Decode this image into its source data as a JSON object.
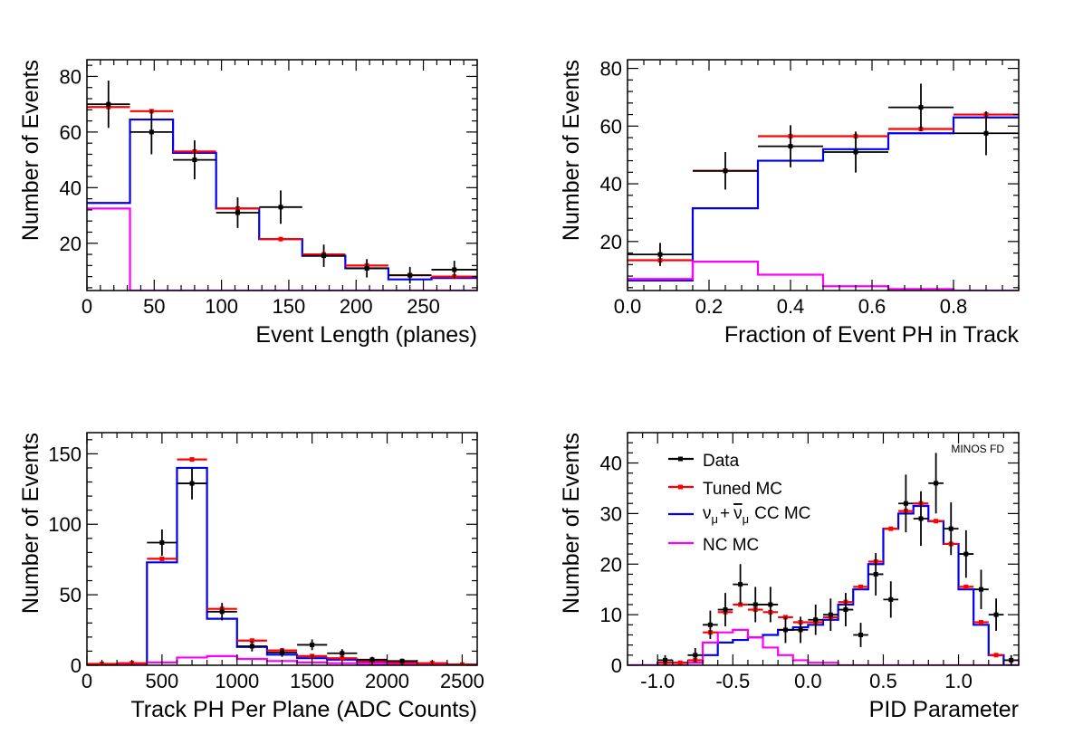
{
  "colors": {
    "data": "#000000",
    "tuned": "#ff0000",
    "cc": "#0000ee",
    "nc": "#ff00ff"
  },
  "chart_data": [
    {
      "type": "histogram",
      "xlabel": "Event Length (planes)",
      "ylabel": "Number of Events",
      "xlim": [
        0,
        290
      ],
      "ylim": [
        3,
        86
      ],
      "xticks": [
        0,
        50,
        100,
        150,
        200,
        250
      ],
      "yticks": [
        20,
        40,
        60,
        80
      ],
      "bin_edges": [
        0,
        32,
        64,
        96,
        128,
        160,
        192,
        224,
        256,
        290
      ],
      "series": [
        {
          "name": "Tuned MC",
          "values": [
            69,
            67.5,
            53,
            32.5,
            21.5,
            16,
            12,
            8.5,
            8
          ]
        },
        {
          "name": "ν_μ + ν̄_μ CC MC",
          "values": [
            34.5,
            64.5,
            52.5,
            32.5,
            21.5,
            15.5,
            11,
            7,
            7.5
          ]
        },
        {
          "name": "NC MC",
          "values": [
            32.5,
            0,
            0,
            0,
            0,
            0,
            0,
            0,
            0
          ]
        },
        {
          "name": "Data",
          "values": [
            70,
            60,
            50,
            31,
            33,
            15.5,
            11,
            8.5,
            10.5
          ],
          "errors": [
            8.5,
            8,
            7,
            5.5,
            6,
            4,
            3.3,
            3,
            3.2
          ]
        }
      ]
    },
    {
      "type": "histogram",
      "xlabel": "Fraction of Event PH in Track",
      "ylabel": "Number of Events",
      "xlim": [
        0,
        0.96
      ],
      "ylim": [
        3,
        83
      ],
      "xticks": [
        0.0,
        0.2,
        0.4,
        0.6,
        0.8
      ],
      "xtick_labels": [
        "0.0",
        "0.2",
        "0.4",
        "0.6",
        "0.8"
      ],
      "yticks": [
        20,
        40,
        60,
        80
      ],
      "bin_edges": [
        0,
        0.16,
        0.32,
        0.48,
        0.64,
        0.8,
        0.96
      ],
      "series": [
        {
          "name": "Tuned MC",
          "values": [
            13.5,
            44.5,
            56.5,
            56.5,
            59,
            64
          ]
        },
        {
          "name": "ν_μ + ν̄_μ CC MC",
          "values": [
            6.5,
            31.5,
            48,
            52,
            57.5,
            63
          ]
        },
        {
          "name": "NC MC",
          "values": [
            7,
            13,
            8.5,
            4.5,
            3.5,
            3
          ]
        },
        {
          "name": "Data",
          "values": [
            15.5,
            44.5,
            53,
            51,
            66.5,
            57.5
          ],
          "errors": [
            4,
            6.5,
            7.3,
            7.1,
            8.2,
            7.6
          ]
        }
      ]
    },
    {
      "type": "histogram",
      "xlabel": "Track PH Per Plane (ADC Counts)",
      "ylabel": "Number of Events",
      "xlim": [
        0,
        2600
      ],
      "ylim": [
        0,
        165
      ],
      "xticks": [
        0,
        500,
        1000,
        1500,
        2000,
        2500
      ],
      "yticks": [
        0,
        50,
        100,
        150
      ],
      "bin_edges": [
        0,
        200,
        400,
        600,
        800,
        1000,
        1200,
        1400,
        1600,
        1800,
        2000,
        2200,
        2400,
        2600
      ],
      "series": [
        {
          "name": "Tuned MC",
          "values": [
            1,
            1.5,
            75.5,
            146,
            40,
            17.5,
            10.5,
            6.5,
            5,
            3,
            2,
            1.5,
            0.5
          ]
        },
        {
          "name": "ν_μ + ν̄_μ CC MC",
          "values": [
            0.5,
            1,
            73,
            140,
            33,
            13,
            7.5,
            5,
            4,
            2.5,
            1.5,
            1,
            0.5
          ]
        },
        {
          "name": "NC MC",
          "values": [
            0,
            0.5,
            2,
            5.5,
            6.5,
            4.5,
            3,
            2,
            1.5,
            1,
            0.5,
            0.5,
            0
          ]
        },
        {
          "name": "Data",
          "values": [
            0,
            0,
            87,
            129,
            38,
            13.5,
            9,
            14.5,
            8.5,
            4,
            3,
            0,
            0
          ],
          "errors": [
            0,
            0,
            9.3,
            11.4,
            6.2,
            3.7,
            3,
            3.8,
            2.9,
            2,
            1.7,
            0,
            0
          ],
          "markers": [
            false,
            false,
            true,
            true,
            true,
            true,
            true,
            true,
            true,
            true,
            true,
            false,
            false
          ]
        }
      ]
    },
    {
      "type": "histogram",
      "xlabel": "PID Parameter",
      "ylabel": "Number of Events",
      "xlim": [
        -1.2,
        1.4
      ],
      "ylim": [
        0,
        46
      ],
      "xticks": [
        -1.0,
        -0.5,
        0.0,
        0.5,
        1.0
      ],
      "xtick_labels": [
        "-1.0",
        "-0.5",
        "0.0",
        "0.5",
        "1.0"
      ],
      "yticks": [
        0,
        10,
        20,
        30,
        40
      ],
      "bin_edges": [
        -1.2,
        -1.1,
        -1.0,
        -0.9,
        -0.8,
        -0.7,
        -0.6,
        -0.5,
        -0.4,
        -0.3,
        -0.2,
        -0.1,
        0.0,
        0.1,
        0.2,
        0.3,
        0.4,
        0.5,
        0.6,
        0.7,
        0.8,
        0.9,
        1.0,
        1.1,
        1.2,
        1.3,
        1.4
      ],
      "annotation": "MINOS FD",
      "legend_position": "top-left",
      "legend": [
        "Data",
        "Tuned MC",
        "ν_μ + ν̄_μ CC MC",
        "NC MC"
      ],
      "series": [
        {
          "name": "Tuned MC",
          "values": [
            0,
            0,
            0.5,
            0.5,
            1,
            6.5,
            10.5,
            12,
            11,
            10.5,
            9.5,
            8.5,
            8.5,
            9.5,
            12.5,
            15.5,
            20.5,
            27,
            30.5,
            32,
            28.5,
            24,
            15.5,
            8.5,
            2,
            0
          ]
        },
        {
          "name": "ν_μ + ν̄_μ CC MC",
          "values": [
            0,
            0,
            0.5,
            0.5,
            0.5,
            2,
            4.5,
            5,
            5.5,
            6,
            7,
            7.5,
            8,
            9,
            12,
            15,
            20,
            27,
            30,
            31.5,
            28.5,
            24,
            15,
            8,
            2,
            0
          ]
        },
        {
          "name": "NC MC",
          "values": [
            0,
            0,
            0,
            0,
            0.5,
            4.5,
            6.5,
            7,
            5.5,
            3.5,
            2,
            1,
            0.5,
            0.5,
            0,
            0,
            0,
            0,
            0,
            0,
            0,
            0,
            0,
            0,
            0,
            0
          ]
        },
        {
          "name": "Data",
          "values": [
            0,
            0,
            1,
            0,
            2,
            8,
            11,
            16,
            12,
            12,
            7,
            7,
            9,
            10,
            11,
            6,
            18,
            13,
            32,
            29,
            36,
            27,
            22,
            15,
            10,
            1
          ],
          "errors": [
            0,
            0,
            1,
            0,
            1.4,
            2.8,
            3.3,
            4,
            3.5,
            3.5,
            2.6,
            2.6,
            3,
            3.2,
            3.3,
            2.4,
            4.2,
            3.6,
            5.7,
            5.4,
            6,
            5.2,
            4.7,
            3.9,
            3.2,
            1
          ],
          "markers": [
            false,
            false,
            true,
            false,
            true,
            true,
            true,
            true,
            true,
            true,
            true,
            true,
            true,
            true,
            true,
            true,
            true,
            true,
            true,
            true,
            true,
            true,
            true,
            true,
            true,
            true
          ]
        }
      ]
    }
  ],
  "legend_labels": {
    "data": "Data",
    "tuned": "Tuned MC",
    "cc_nu": "ν",
    "cc_mu1": "μ",
    "cc_plus": "+",
    "cc_nubar": "ν",
    "cc_mu2": "μ",
    "cc_rest": "CC MC",
    "nc": "NC MC"
  }
}
